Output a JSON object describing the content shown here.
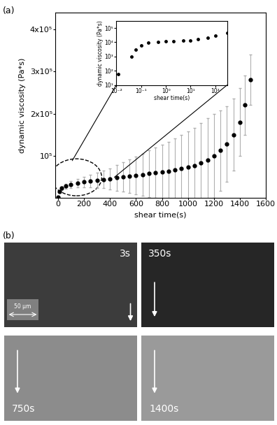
{
  "panel_labels": [
    "(a)",
    "(b)"
  ],
  "chart_data": [
    {
      "type": "line",
      "x_label": "shear time(s)",
      "y_label": "dynamic viscosity (Pa*s)",
      "x": [
        0,
        10,
        30,
        60,
        100,
        150,
        200,
        250,
        300,
        350,
        400,
        450,
        500,
        550,
        600,
        650,
        700,
        750,
        800,
        850,
        900,
        950,
        1000,
        1050,
        1100,
        1150,
        1200,
        1250,
        1300,
        1350,
        1400,
        1440,
        1480
      ],
      "series": [
        {
          "color": "#000000",
          "marker": "circle",
          "values": [
            2000,
            15000,
            22000,
            27000,
            31000,
            34000,
            37000,
            39000,
            41000,
            43000,
            45000,
            47000,
            49000,
            51000,
            53000,
            55000,
            57000,
            59000,
            61000,
            63000,
            66000,
            69000,
            72000,
            76000,
            82000,
            90000,
            100000,
            112000,
            128000,
            150000,
            180000,
            220000,
            280000
          ],
          "errors": [
            0,
            2000,
            4000,
            6000,
            8000,
            10000,
            12000,
            15000,
            18000,
            21000,
            25000,
            30000,
            35000,
            40000,
            45000,
            50000,
            55000,
            60000,
            65000,
            70000,
            75000,
            80000,
            85000,
            90000,
            95000,
            100000,
            100000,
            95000,
            90000,
            85000,
            80000,
            70000,
            60000
          ]
        }
      ],
      "xlim": [
        -20,
        1600
      ],
      "xticks": [
        0,
        200,
        400,
        600,
        800,
        1000,
        1200,
        1400,
        1600
      ],
      "ylim": [
        0,
        440000
      ],
      "yticks": [
        {
          "value": 100000,
          "label": "10⁵"
        },
        {
          "value": 200000,
          "label": "2x10⁵"
        },
        {
          "value": 300000,
          "label": "3x10⁵"
        },
        {
          "value": 400000,
          "label": "4x10⁵"
        }
      ]
    },
    {
      "type": "line",
      "log": true,
      "x_label": "shear time(s)",
      "y_label": "dynamic viscosity (Pa*s)",
      "x": [
        0.012,
        0.04,
        0.06,
        0.1,
        0.2,
        0.5,
        1,
        2,
        5,
        10,
        20,
        50,
        100,
        300
      ],
      "series": [
        {
          "color": "#000000",
          "marker": "circle",
          "values": [
            60,
            1000,
            3000,
            6000,
            9000,
            11000,
            12000,
            12500,
            13000,
            13500,
            16000,
            22000,
            30000,
            45000
          ]
        }
      ],
      "xlim": [
        0.01,
        300
      ],
      "xticks": [
        {
          "value": 0.01,
          "label": "10⁻²"
        },
        {
          "value": 0.1,
          "label": "10⁻¹"
        },
        {
          "value": 1,
          "label": "10⁰"
        },
        {
          "value": 10,
          "label": "10¹"
        },
        {
          "value": 100,
          "label": "10²"
        }
      ],
      "ylim": [
        10,
        300000
      ],
      "yticks": [
        {
          "value": 10,
          "label": "10¹"
        },
        {
          "value": 100,
          "label": "10²"
        },
        {
          "value": 1000,
          "label": "10³"
        },
        {
          "value": 10000,
          "label": "10⁴"
        },
        {
          "value": 100000,
          "label": "10⁵"
        }
      ]
    }
  ],
  "micrographs": {
    "times": [
      "3s",
      "350s",
      "750s",
      "1400s"
    ],
    "scale_bar": "50 μm"
  }
}
